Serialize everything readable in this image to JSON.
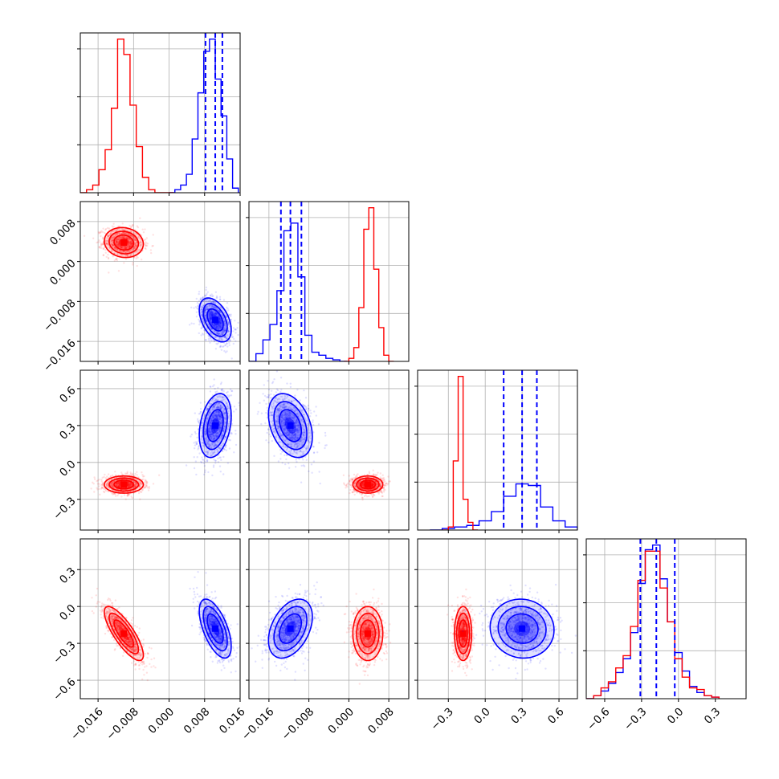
{
  "colors": {
    "red": "#ff0000",
    "blue": "#0000ff"
  },
  "axes": {
    "p0": {
      "range": [
        -0.02,
        0.016
      ],
      "ticks": [
        -0.016,
        -0.008,
        0.0,
        0.008,
        0.016
      ],
      "labels": [
        "−0.016",
        "−0.008",
        "0.000",
        "0.008",
        "0.016"
      ]
    },
    "p1": {
      "range": [
        -0.02,
        0.012
      ],
      "ticks": [
        -0.016,
        -0.008,
        0.0,
        0.008
      ],
      "labels": [
        "−0.016",
        "−0.008",
        "0.000",
        "0.008"
      ]
    },
    "p2": {
      "range": [
        -0.55,
        0.75
      ],
      "ticks": [
        -0.3,
        0.0,
        0.3,
        0.6
      ],
      "labels": [
        "−0.3",
        "0.0",
        "0.3",
        "0.6"
      ]
    },
    "p3": {
      "range": [
        -0.75,
        0.55
      ],
      "ticks": [
        -0.6,
        -0.3,
        0.0,
        0.3
      ],
      "labels": [
        "−0.6",
        "−0.3",
        "0.0",
        "0.3"
      ]
    }
  },
  "chart_data": {
    "type": "corner",
    "title": "",
    "n_params": 4,
    "params": [
      "p0",
      "p1",
      "p2",
      "p3"
    ],
    "grid": true,
    "quantile_lines": {
      "color": "blue",
      "style": "dashed",
      "p0": [
        0.0082,
        0.0104,
        0.012
      ],
      "p1": [
        -0.0136,
        -0.0117,
        -0.0095
      ],
      "p2": [
        0.15,
        0.3,
        0.42
      ],
      "p3": [
        -0.31,
        -0.18,
        -0.03
      ]
    },
    "series": [
      {
        "color": "red",
        "means": [
          -0.0102,
          0.0038,
          -0.18,
          -0.22
        ],
        "sigmas": [
          0.0022,
          0.0015,
          0.035,
          0.11
        ],
        "correlations": {
          "p0_p3": -0.8,
          "p0_p1": -0.1
        },
        "histograms": {
          "p0": {
            "edges": [
              -0.02,
              -0.0186,
              -0.0172,
              -0.0158,
              -0.0144,
              -0.013,
              -0.0116,
              -0.0102,
              -0.0088,
              -0.0074,
              -0.006,
              -0.0046,
              -0.0032,
              -0.0018,
              -0.0004,
              0.001
            ],
            "counts": [
              0,
              0.02,
              0.05,
              0.15,
              0.28,
              0.55,
              1.0,
              0.9,
              0.57,
              0.3,
              0.1,
              0.02,
              0,
              0,
              0
            ]
          },
          "p1": {
            "edges": [
              -0.001,
              0.0,
              0.001,
              0.002,
              0.003,
              0.004,
              0.005,
              0.006,
              0.007,
              0.008,
              0.009
            ],
            "counts": [
              0.0,
              0.02,
              0.09,
              0.35,
              0.86,
              1.0,
              0.6,
              0.22,
              0.04,
              0.0
            ]
          },
          "p2": {
            "edges": [
              -0.35,
              -0.3,
              -0.26,
              -0.22,
              -0.18,
              -0.14,
              -0.1,
              -0.06
            ],
            "counts": [
              0.0,
              0.02,
              0.45,
              1.0,
              0.2,
              0.05,
              0.0
            ]
          },
          "p3": {
            "edges": [
              -0.75,
              -0.69,
              -0.63,
              -0.57,
              -0.51,
              -0.45,
              -0.39,
              -0.33,
              -0.27,
              -0.21,
              -0.15,
              -0.09,
              -0.03,
              0.03,
              0.09,
              0.15,
              0.21,
              0.27,
              0.33
            ],
            "counts": [
              0.0,
              0.02,
              0.07,
              0.11,
              0.2,
              0.28,
              0.47,
              0.77,
              0.96,
              0.96,
              0.72,
              0.5,
              0.26,
              0.14,
              0.07,
              0.06,
              0.02,
              0.01
            ]
          }
        }
      },
      {
        "color": "blue",
        "means": [
          0.0104,
          -0.0117,
          0.3,
          -0.18
        ],
        "sigmas": [
          0.0018,
          0.0022,
          0.13,
          0.12
        ],
        "correlations": {
          "p0_p1": -0.45,
          "p0_p2": 0.3,
          "p0_p3": -0.6,
          "p1_p2": -0.35,
          "p1_p3": 0.4,
          "p2_p3": -0.05
        },
        "histograms": {
          "p0": {
            "edges": [
              0.0,
              0.0013,
              0.0026,
              0.0039,
              0.0052,
              0.0065,
              0.0078,
              0.0091,
              0.0104,
              0.0117,
              0.013,
              0.0143,
              0.0156
            ],
            "counts": [
              0.0,
              0.02,
              0.05,
              0.12,
              0.35,
              0.65,
              0.92,
              1.0,
              0.74,
              0.5,
              0.22,
              0.03
            ]
          },
          "p1": {
            "edges": [
              -0.02,
              -0.0186,
              -0.0172,
              -0.0158,
              -0.0144,
              -0.013,
              -0.0116,
              -0.0102,
              -0.0088,
              -0.0074,
              -0.006,
              -0.0046,
              -0.0032,
              -0.0018,
              -0.0004
            ],
            "counts": [
              0.0,
              0.05,
              0.14,
              0.24,
              0.46,
              0.85,
              0.9,
              0.55,
              0.17,
              0.06,
              0.04,
              0.02,
              0.01,
              0.0
            ]
          },
          "p2": {
            "edges": [
              -0.45,
              -0.35,
              -0.25,
              -0.15,
              -0.05,
              0.05,
              0.15,
              0.25,
              0.35,
              0.45,
              0.55,
              0.65,
              0.75
            ],
            "counts": [
              0.0,
              0.01,
              0.02,
              0.03,
              0.06,
              0.12,
              0.22,
              0.3,
              0.29,
              0.15,
              0.06,
              0.02
            ]
          },
          "p3": {
            "edges": [
              -0.75,
              -0.69,
              -0.63,
              -0.57,
              -0.51,
              -0.45,
              -0.39,
              -0.33,
              -0.27,
              -0.21,
              -0.15,
              -0.09,
              -0.03,
              0.03,
              0.09,
              0.15,
              0.21,
              0.27,
              0.33
            ],
            "counts": [
              0.0,
              0.02,
              0.05,
              0.1,
              0.17,
              0.26,
              0.43,
              0.75,
              0.97,
              1.0,
              0.78,
              0.5,
              0.3,
              0.18,
              0.08,
              0.04,
              0.02,
              0.01
            ]
          }
        }
      }
    ]
  }
}
